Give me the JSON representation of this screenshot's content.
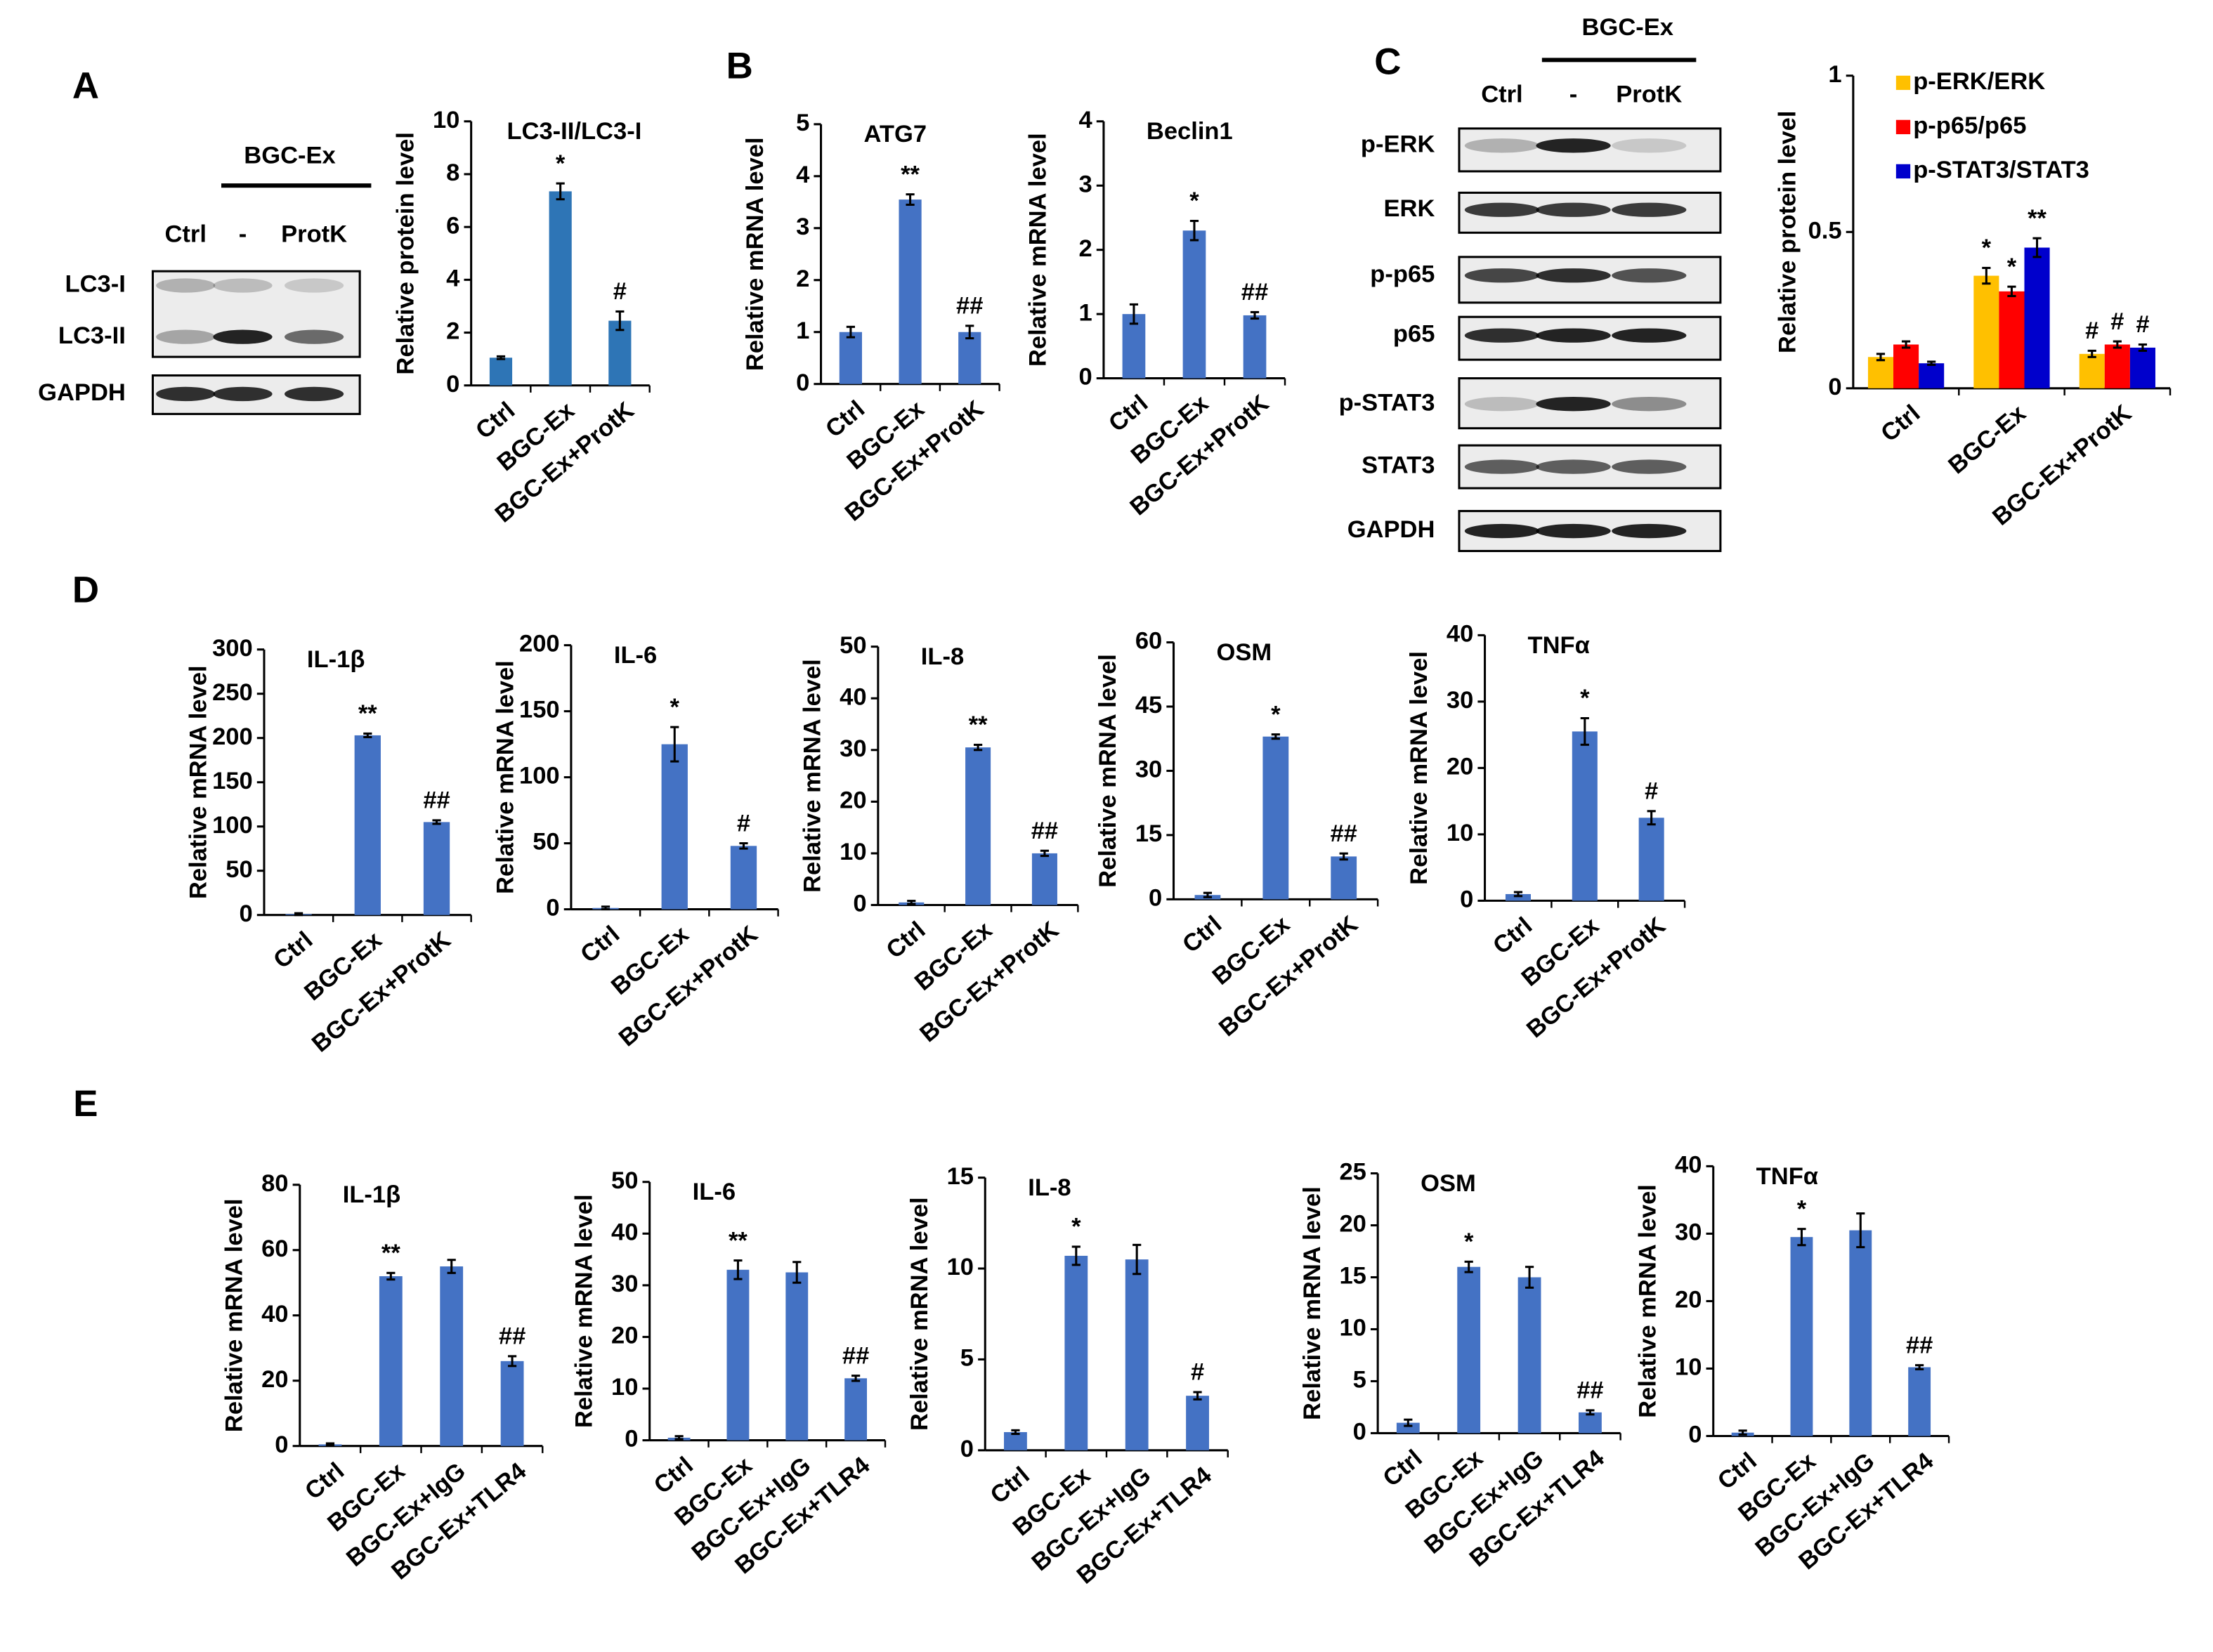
{
  "panel_labels": [
    "A",
    "B",
    "C",
    "D",
    "E"
  ],
  "blots": [
    {
      "group": "BGC-Ex",
      "lanes": [
        "Ctrl",
        "-",
        "ProtK"
      ],
      "rows": [
        "LC3-I",
        "LC3-II",
        "GAPDH"
      ]
    },
    {
      "group": "BGC-Ex",
      "lanes": [
        "Ctrl",
        "-",
        "ProtK"
      ],
      "rows": [
        "p-ERK",
        "ERK",
        "p-p65",
        "p65",
        "p-STAT3",
        "STAT3",
        "GAPDH"
      ]
    }
  ],
  "chart_data": [
    {
      "type": "bar",
      "title": "LC3-II/LC3-I",
      "ylabel": "Relative protein level",
      "categories": [
        "Ctrl",
        "BGC-Ex",
        "BGC-Ex+ProtK"
      ],
      "values": [
        1.05,
        7.35,
        2.45
      ],
      "errors": [
        0.05,
        0.3,
        0.35
      ],
      "annotations": [
        null,
        "*",
        "#"
      ],
      "color": "#2e75b6",
      "ylim": [
        0,
        10
      ],
      "yticks": [
        0,
        2,
        4,
        6,
        8,
        10
      ]
    },
    {
      "type": "bar",
      "title": "ATG7",
      "ylabel": "Relative mRNA level",
      "categories": [
        "Ctrl",
        "BGC-Ex",
        "BGC-Ex+ProtK"
      ],
      "values": [
        1,
        3.55,
        1
      ],
      "errors": [
        0.1,
        0.1,
        0.12
      ],
      "annotations": [
        null,
        "**",
        "##"
      ],
      "color": "#4472c4",
      "ylim": [
        0,
        5
      ],
      "yticks": [
        0,
        1,
        2,
        3,
        4,
        5
      ]
    },
    {
      "type": "bar",
      "title": "Beclin1",
      "ylabel": "Relative mRNA level",
      "categories": [
        "Ctrl",
        "BGC-Ex",
        "BGC-Ex+ProtK"
      ],
      "values": [
        1,
        2.3,
        0.98
      ],
      "errors": [
        0.15,
        0.15,
        0.05
      ],
      "annotations": [
        null,
        "*",
        "##"
      ],
      "color": "#4472c4",
      "ylim": [
        0,
        4
      ],
      "yticks": [
        0,
        1,
        2,
        3,
        4
      ]
    },
    {
      "type": "bar",
      "ylabel": "Relative protein level",
      "categories": [
        "Ctrl",
        "BGC-Ex",
        "BGC-Ex+ProtK"
      ],
      "series": [
        {
          "name": "p-ERK/ERK",
          "color": "#ffc000",
          "values": [
            0.1,
            0.36,
            0.11
          ],
          "errors": [
            0.01,
            0.025,
            0.01
          ],
          "annotations": [
            null,
            "*",
            "#"
          ]
        },
        {
          "name": "p-p65/p65",
          "color": "#ff0000",
          "values": [
            0.14,
            0.31,
            0.14
          ],
          "errors": [
            0.01,
            0.015,
            0.01
          ],
          "annotations": [
            null,
            "*",
            "#"
          ]
        },
        {
          "name": "p-STAT3/STAT3",
          "color": "#0000cc",
          "values": [
            0.08,
            0.45,
            0.13
          ],
          "errors": [
            0.005,
            0.03,
            0.01
          ],
          "annotations": [
            null,
            "**",
            "#"
          ]
        }
      ],
      "ylim": [
        0,
        1
      ],
      "yticks": [
        0,
        0.5,
        1
      ]
    },
    {
      "type": "bar",
      "title": "IL-1β",
      "ylabel": "Relative mRNA level",
      "categories": [
        "Ctrl",
        "BGC-Ex",
        "BGC-Ex+ProtK"
      ],
      "values": [
        1,
        203,
        105
      ],
      "errors": [
        1,
        2,
        2
      ],
      "annotations": [
        null,
        "**",
        "##"
      ],
      "color": "#4472c4",
      "ylim": [
        0,
        300
      ],
      "yticks": [
        0,
        50,
        100,
        150,
        200,
        250,
        300
      ]
    },
    {
      "type": "bar",
      "title": "IL-6",
      "ylabel": "Relative mRNA level",
      "categories": [
        "Ctrl",
        "BGC-Ex",
        "BGC-Ex+ProtK"
      ],
      "values": [
        1,
        125,
        48
      ],
      "errors": [
        1,
        13,
        2
      ],
      "annotations": [
        null,
        "*",
        "#"
      ],
      "color": "#4472c4",
      "ylim": [
        0,
        200
      ],
      "yticks": [
        0,
        50,
        100,
        150,
        200
      ]
    },
    {
      "type": "bar",
      "title": "IL-8",
      "ylabel": "Relative mRNA level",
      "categories": [
        "Ctrl",
        "BGC-Ex",
        "BGC-Ex+ProtK"
      ],
      "values": [
        0.5,
        30.5,
        10
      ],
      "errors": [
        0.3,
        0.5,
        0.5
      ],
      "annotations": [
        null,
        "**",
        "##"
      ],
      "color": "#4472c4",
      "ylim": [
        0,
        50
      ],
      "yticks": [
        0,
        10,
        20,
        30,
        40,
        50
      ]
    },
    {
      "type": "bar",
      "title": "OSM",
      "ylabel": "Relative mRNA level",
      "categories": [
        "Ctrl",
        "BGC-Ex",
        "BGC-Ex+ProtK"
      ],
      "values": [
        1,
        38,
        10
      ],
      "errors": [
        0.5,
        0.5,
        0.7
      ],
      "annotations": [
        null,
        "*",
        "##"
      ],
      "color": "#4472c4",
      "ylim": [
        0,
        60
      ],
      "yticks": [
        0,
        15,
        30,
        45,
        60
      ]
    },
    {
      "type": "bar",
      "title": "TNFα",
      "ylabel": "Relative mRNA level",
      "categories": [
        "Ctrl",
        "BGC-Ex",
        "BGC-Ex+ProtK"
      ],
      "values": [
        1,
        25.5,
        12.5
      ],
      "errors": [
        0.3,
        2,
        1
      ],
      "annotations": [
        null,
        "*",
        "#"
      ],
      "color": "#4472c4",
      "ylim": [
        0,
        40
      ],
      "yticks": [
        0,
        10,
        20,
        30,
        40
      ]
    },
    {
      "type": "bar",
      "title": "IL-1β",
      "ylabel": "Relative mRNA level",
      "categories": [
        "Ctrl",
        "BGC-Ex",
        "BGC-Ex+IgG",
        "BGC-Ex+TLR4"
      ],
      "values": [
        0.5,
        52,
        55,
        26
      ],
      "errors": [
        0.3,
        1,
        2,
        1.5
      ],
      "annotations": [
        null,
        "**",
        null,
        "##"
      ],
      "color": "#4472c4",
      "ylim": [
        0,
        80
      ],
      "yticks": [
        0,
        20,
        40,
        60,
        80
      ]
    },
    {
      "type": "bar",
      "title": "IL-6",
      "ylabel": "Relative mRNA level",
      "categories": [
        "Ctrl",
        "BGC-Ex",
        "BGC-Ex+IgG",
        "BGC-Ex+TLR4"
      ],
      "values": [
        0.5,
        33,
        32.5,
        12
      ],
      "errors": [
        0.3,
        1.8,
        2,
        0.5
      ],
      "annotations": [
        null,
        "**",
        null,
        "##"
      ],
      "color": "#4472c4",
      "ylim": [
        0,
        50
      ],
      "yticks": [
        0,
        10,
        20,
        30,
        40,
        50
      ]
    },
    {
      "type": "bar",
      "title": "IL-8",
      "ylabel": "Relative mRNA level",
      "categories": [
        "Ctrl",
        "BGC-Ex",
        "BGC-Ex+IgG",
        "BGC-Ex+TLR4"
      ],
      "values": [
        1,
        10.7,
        10.5,
        3
      ],
      "errors": [
        0.1,
        0.5,
        0.8,
        0.2
      ],
      "annotations": [
        null,
        "*",
        null,
        "#"
      ],
      "color": "#4472c4",
      "ylim": [
        0,
        15
      ],
      "yticks": [
        0,
        5,
        10,
        15
      ]
    },
    {
      "type": "bar",
      "title": "OSM",
      "ylabel": "Relative mRNA level",
      "categories": [
        "Ctrl",
        "BGC-Ex",
        "BGC-Ex+IgG",
        "BGC-Ex+TLR4"
      ],
      "values": [
        1,
        16,
        15,
        2
      ],
      "errors": [
        0.3,
        0.5,
        1,
        0.2
      ],
      "annotations": [
        null,
        "*",
        null,
        "##"
      ],
      "color": "#4472c4",
      "ylim": [
        0,
        25
      ],
      "yticks": [
        0,
        5,
        10,
        15,
        20,
        25
      ]
    },
    {
      "type": "bar",
      "title": "TNFα",
      "ylabel": "Relative mRNA level",
      "categories": [
        "Ctrl",
        "BGC-Ex",
        "BGC-Ex+IgG",
        "BGC-Ex+TLR4"
      ],
      "values": [
        0.5,
        29.5,
        30.5,
        10.2
      ],
      "errors": [
        0.3,
        1.2,
        2.5,
        0.3
      ],
      "annotations": [
        null,
        "*",
        null,
        "##"
      ],
      "color": "#4472c4",
      "ylim": [
        0,
        40
      ],
      "yticks": [
        0,
        10,
        20,
        30,
        40
      ]
    }
  ]
}
